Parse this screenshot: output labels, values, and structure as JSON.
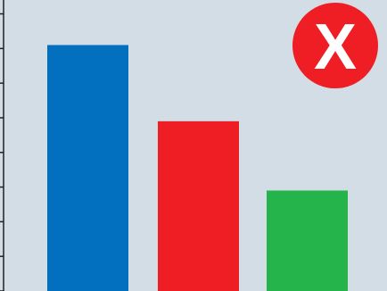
{
  "chart_data": {
    "type": "bar",
    "categories": [
      "",
      "",
      ""
    ],
    "values": [
      7.1,
      4.9,
      2.9
    ],
    "ylim": [
      0,
      8.4
    ],
    "title": "",
    "xlabel": "",
    "ylabel": "",
    "grid": false,
    "legend": "none",
    "bar_colors": [
      "#0270be",
      "#ee1e24",
      "#25b34b"
    ]
  },
  "colors": {
    "background": "#d2dde6",
    "axis": "#222222",
    "badge": "#ee1e24",
    "badge_glyph": "#ffffff"
  },
  "badge": {
    "icon": "close-x-icon",
    "text": "X"
  }
}
